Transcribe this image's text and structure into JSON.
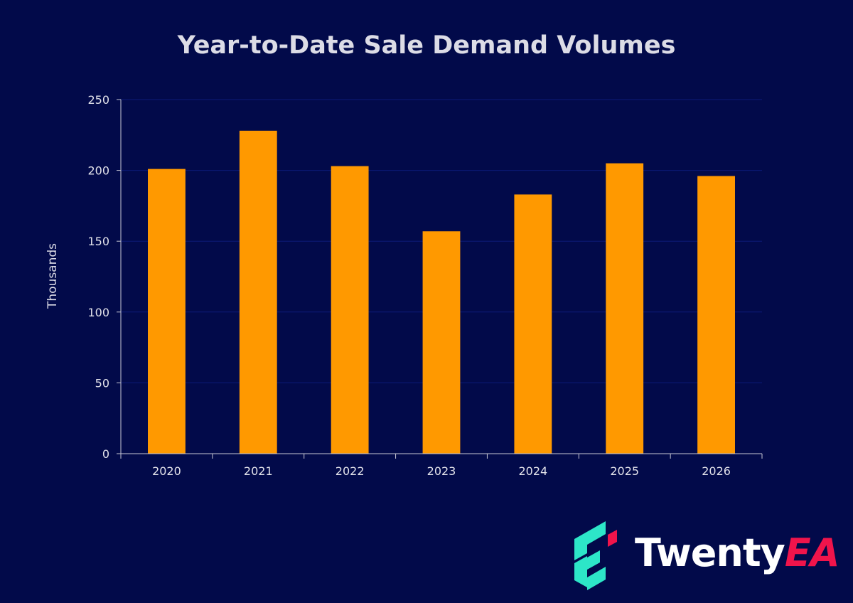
{
  "chart_data": {
    "type": "bar",
    "title": "Year-to-Date Sale Demand Volumes",
    "xlabel": "",
    "ylabel": "Thousands",
    "categories": [
      "2020",
      "2021",
      "2022",
      "2023",
      "2024",
      "2025",
      "2026"
    ],
    "values": [
      201,
      228,
      203,
      157,
      183,
      205,
      196
    ],
    "ylim": [
      0,
      250
    ],
    "yticks": [
      0,
      50,
      100,
      150,
      200,
      250
    ],
    "grid": true,
    "legend": "none"
  },
  "colors": {
    "background": "#020a4a",
    "bar": "#ff9900",
    "grid": "#0c1a78",
    "axis": "#c8c8d4",
    "logo_teal": "#2de6c8",
    "logo_pink": "#f0144b"
  },
  "logo": {
    "name": "TwentyEA",
    "word_main": "Twenty",
    "word_accent": "EA"
  }
}
